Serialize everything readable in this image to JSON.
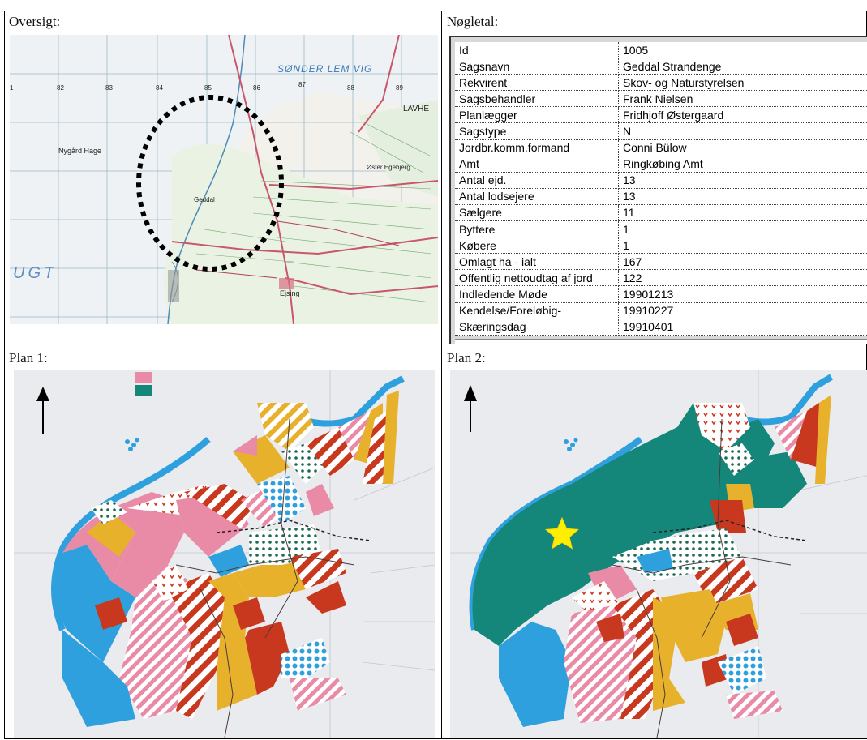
{
  "sections": {
    "overview": "Oversigt:",
    "key_figures": "Nøgletal:",
    "plan1": "Plan 1:",
    "plan2": "Plan 2:"
  },
  "map_labels": {
    "sonder_lem_vig": "SØNDER LEM VIG",
    "nygaard_hage": "Nygård Hage",
    "geddal": "Geddal",
    "oster_egebjerg": "Øster Egebjerg",
    "ejsing": "Ejsing",
    "lavhe": "LAVHE",
    "ugt": "UGT",
    "grid_numbers": [
      "1",
      "82",
      "83",
      "84",
      "85",
      "86",
      "87",
      "88",
      "89"
    ]
  },
  "key_figures": [
    {
      "label": "Id",
      "value": "1005"
    },
    {
      "label": "Sagsnavn",
      "value": "Geddal Strandenge"
    },
    {
      "label": "Rekvirent",
      "value": "Skov- og Naturstyrelsen"
    },
    {
      "label": "Sagsbehandler",
      "value": "Frank Nielsen"
    },
    {
      "label": "Planlægger",
      "value": "Fridhjoff Østergaard"
    },
    {
      "label": "Sagstype",
      "value": "N"
    },
    {
      "label": "Jordbr.komm.formand",
      "value": "Conni Bülow"
    },
    {
      "label": "Amt",
      "value": "Ringkøbing Amt"
    },
    {
      "label": "Antal ejd.",
      "value": "13"
    },
    {
      "label": "Antal lodsejere",
      "value": "13"
    },
    {
      "label": "Sælgere",
      "value": "11"
    },
    {
      "label": "Byttere",
      "value": "1"
    },
    {
      "label": "Købere",
      "value": "1"
    },
    {
      "label": "Omlagt ha - ialt",
      "value": "167"
    },
    {
      "label": "Offentlig nettoudtag af jord",
      "value": "122"
    },
    {
      "label": "Indledende Møde",
      "value": "19901213"
    },
    {
      "label": "Kendelse/Foreløbig-",
      "value": "19910227"
    },
    {
      "label": "Skæringsdag",
      "value": "19910401"
    }
  ],
  "colors": {
    "sea_blue": "#2fa0de",
    "teal": "#14877a",
    "pink": "#e98aa6",
    "red": "#c8381f",
    "yellow": "#e8b12c",
    "star": "#ffee00"
  }
}
